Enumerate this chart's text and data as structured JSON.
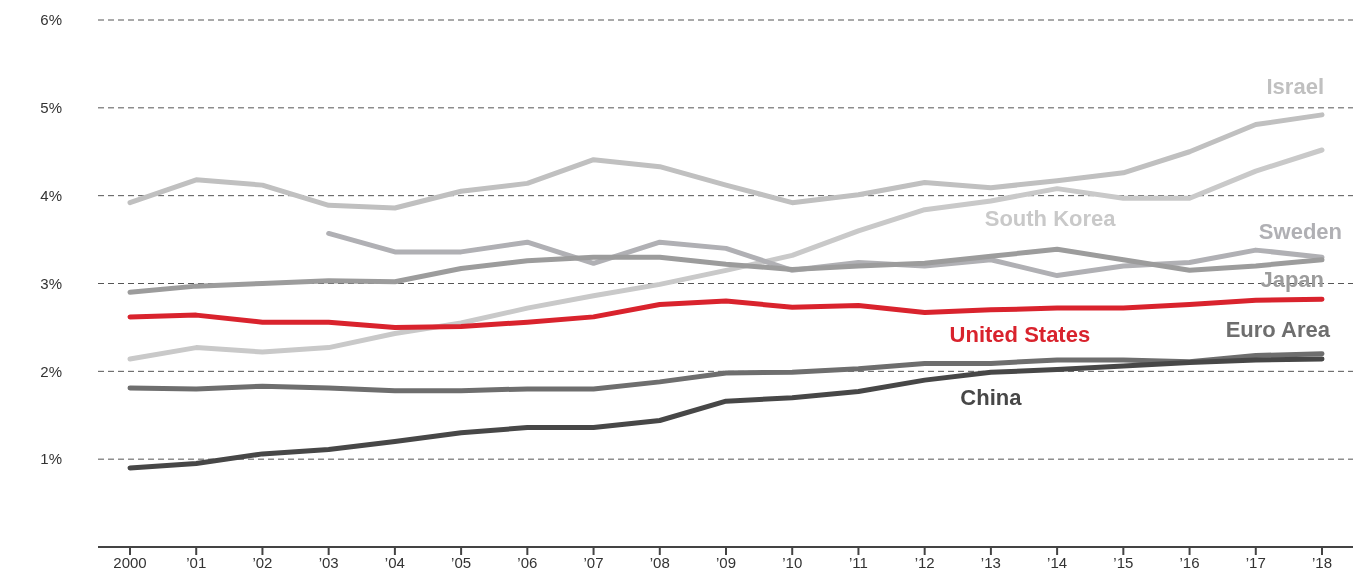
{
  "chart_data": {
    "type": "line",
    "categories": [
      "2000",
      "’01",
      "’02",
      "’03",
      "’04",
      "’05",
      "’06",
      "’07",
      "’08",
      "’09",
      "’10",
      "’11",
      "’12",
      "’13",
      "’14",
      "’15",
      "’16",
      "’17",
      "’18"
    ],
    "series": [
      {
        "name": "Israel",
        "color": "#c0c0c0",
        "values": [
          3.92,
          4.18,
          4.12,
          3.89,
          3.86,
          4.05,
          4.14,
          4.41,
          4.33,
          4.12,
          3.92,
          4.01,
          4.15,
          4.09,
          4.17,
          4.26,
          4.5,
          4.81,
          4.92
        ]
      },
      {
        "name": "South Korea",
        "color": "#c9c9c9",
        "values": [
          2.14,
          2.27,
          2.22,
          2.27,
          2.43,
          2.55,
          2.72,
          2.86,
          2.99,
          3.15,
          3.32,
          3.6,
          3.84,
          3.94,
          4.08,
          3.97,
          3.97,
          4.28,
          4.52
        ]
      },
      {
        "name": "Sweden",
        "color": "#b0b0b4",
        "values": [
          null,
          null,
          null,
          3.57,
          3.36,
          3.36,
          3.47,
          3.23,
          3.47,
          3.4,
          3.15,
          3.24,
          3.2,
          3.27,
          3.09,
          3.2,
          3.24,
          3.38,
          3.3
        ]
      },
      {
        "name": "Japan",
        "color": "#9c9c9c",
        "values": [
          2.9,
          2.97,
          3.0,
          3.03,
          3.02,
          3.17,
          3.26,
          3.3,
          3.3,
          3.22,
          3.16,
          3.2,
          3.23,
          3.31,
          3.39,
          3.27,
          3.15,
          3.2,
          3.27
        ]
      },
      {
        "name": "United States",
        "color": "#d9232d",
        "values": [
          2.62,
          2.64,
          2.56,
          2.56,
          2.5,
          2.51,
          2.56,
          2.62,
          2.76,
          2.8,
          2.73,
          2.75,
          2.67,
          2.7,
          2.72,
          2.72,
          2.76,
          2.81,
          2.82
        ]
      },
      {
        "name": "Euro Area",
        "color": "#6e6e6e",
        "values": [
          1.81,
          1.8,
          1.83,
          1.81,
          1.78,
          1.78,
          1.8,
          1.8,
          1.88,
          1.98,
          1.99,
          2.03,
          2.09,
          2.09,
          2.13,
          2.13,
          2.11,
          2.18,
          2.2
        ]
      },
      {
        "name": "China",
        "color": "#474747",
        "values": [
          0.9,
          0.95,
          1.06,
          1.11,
          1.2,
          1.3,
          1.36,
          1.36,
          1.44,
          1.66,
          1.7,
          1.77,
          1.9,
          1.99,
          2.02,
          2.06,
          2.1,
          2.13,
          2.14
        ]
      }
    ],
    "ylim": [
      0,
      6
    ],
    "yticks": [
      {
        "value": 0,
        "label": null
      },
      {
        "value": 1,
        "label": "1%"
      },
      {
        "value": 2,
        "label": "2%"
      },
      {
        "value": 3,
        "label": "3%"
      },
      {
        "value": 4,
        "label": "4%"
      },
      {
        "value": 5,
        "label": "5%"
      },
      {
        "value": 6,
        "label": "6%"
      }
    ],
    "grid": "y",
    "line_style": "solid",
    "marker": "none",
    "legend": false
  }
}
